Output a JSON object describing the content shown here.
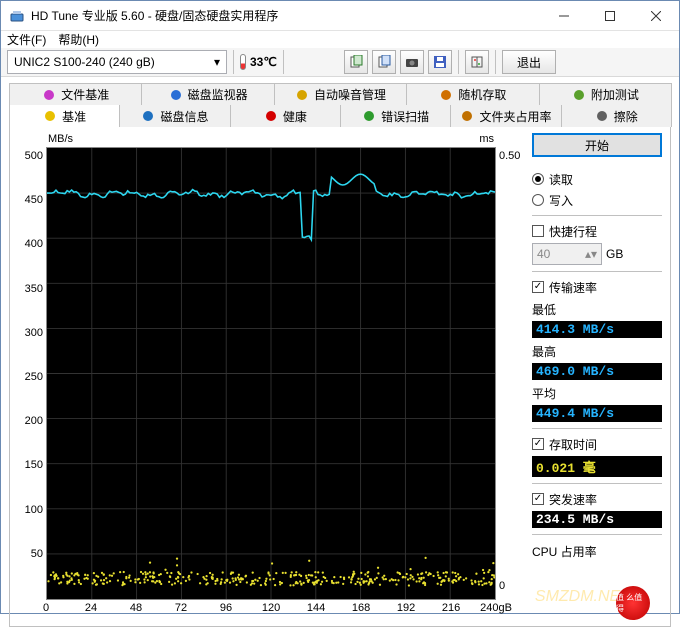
{
  "window": {
    "title": "HD Tune 专业版 5.60 - 硬盘/固态硬盘实用程序"
  },
  "menu": {
    "file": "文件(F)",
    "help": "帮助(H)"
  },
  "toolbar": {
    "drive_selected": "UNIC2 S100-240 (240 gB)",
    "temperature": "33℃",
    "exit_label": "退出"
  },
  "tabs": {
    "row1": [
      {
        "label": "文件基准",
        "icon": "#c838c8"
      },
      {
        "label": "磁盘监视器",
        "icon": "#2a6fd6"
      },
      {
        "label": "自动噪音管理",
        "icon": "#d6a400"
      },
      {
        "label": "随机存取",
        "icon": "#d07000"
      },
      {
        "label": "附加测试",
        "icon": "#5aa02c"
      }
    ],
    "row2": [
      {
        "label": "基准",
        "icon": "#e8c000",
        "active": true
      },
      {
        "label": "磁盘信息",
        "icon": "#1e70c0"
      },
      {
        "label": "健康",
        "icon": "#d40000"
      },
      {
        "label": "错误扫描",
        "icon": "#2e9b2e"
      },
      {
        "label": "文件夹占用率",
        "icon": "#c07000"
      },
      {
        "label": "擦除",
        "icon": "#606060"
      }
    ]
  },
  "chart": {
    "type": "line-scatter",
    "background_color": "#000000",
    "grid_color": "#333333",
    "speed_line_color": "#2dd7f0",
    "access_dot_color": "#e8e030",
    "y_left_unit": "MB/s",
    "y_right_unit": "ms",
    "y_left_ticks": [
      "500",
      "450",
      "400",
      "350",
      "300",
      "250",
      "200",
      "150",
      "100",
      "50",
      ""
    ],
    "y_right_ticks": [
      "0.50",
      "",
      "",
      "",
      "",
      "",
      "",
      "",
      "",
      "",
      "0"
    ],
    "x_ticks": [
      "0",
      "24",
      "48",
      "72",
      "96",
      "120",
      "144",
      "168",
      "192",
      "216",
      "240gB"
    ],
    "x_count": 11,
    "speed_series_mean": 449,
    "speed_series_dip_x": 0.58,
    "speed_series_dip_y": 400,
    "speed_series_bump_x": 0.68,
    "speed_series_bump_y": 465,
    "access_band_low_ms": 0.015,
    "access_band_high_ms": 0.03
  },
  "side": {
    "start_label": "开始",
    "radio_read": "读取",
    "radio_write": "写入",
    "radio_selected": "read",
    "chk_short_stroke": "快捷行程",
    "short_stroke_value": "40",
    "short_stroke_unit": "GB",
    "chk_transfer": "传输速率",
    "min_label": "最低",
    "min_val": "414.3 MB/s",
    "max_label": "最高",
    "max_val": "469.0 MB/s",
    "avg_label": "平均",
    "avg_val": "449.4 MB/s",
    "chk_access": "存取时间",
    "access_val": "0.021 毫",
    "chk_burst": "突发速率",
    "burst_val": "234.5 MB/s",
    "cpu_label": "CPU 占用率"
  },
  "colors": {
    "stat_min": "#26b4ff",
    "stat_max": "#26b4ff",
    "stat_avg": "#26b4ff",
    "stat_access": "#e8e030",
    "stat_burst": "#ffffff"
  },
  "watermark": "SMZDM.NET",
  "badge": "值 么值得"
}
